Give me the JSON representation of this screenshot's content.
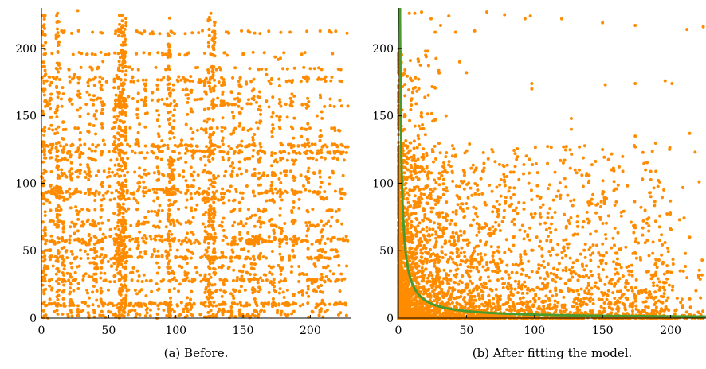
{
  "chart_data": [
    {
      "type": "scatter",
      "caption": "(a) Before.",
      "xlim": [
        0,
        230
      ],
      "ylim": [
        0,
        230
      ],
      "xticks": [
        "0",
        "50",
        "100",
        "150",
        "200"
      ],
      "yticks": [
        "0",
        "50",
        "100",
        "150",
        "200"
      ],
      "point_color": "#ff8c00",
      "grid": false,
      "series": [
        {
          "rows_y": [
            0,
            2,
            5,
            10,
            11,
            20,
            28,
            33,
            38,
            45,
            50,
            56,
            58,
            60,
            69,
            71,
            80,
            88,
            93,
            95,
            105,
            108,
            118,
            123,
            128,
            140,
            158,
            162,
            176,
            178,
            185,
            196,
            212
          ],
          "cols_x": [
            2,
            7,
            12,
            16,
            22,
            28,
            35,
            40,
            45,
            55,
            58,
            60,
            62,
            72,
            77,
            87,
            95,
            98,
            108,
            112,
            122,
            125,
            128,
            135,
            142,
            148,
            158,
            162,
            172,
            178,
            187,
            198,
            208
          ],
          "points": [
            [
              4,
              176
            ],
            [
              12,
              226
            ],
            [
              15,
              213
            ],
            [
              27,
              228
            ],
            [
              38,
              212
            ],
            [
              55,
              211
            ],
            [
              62,
              205
            ],
            [
              72,
              212
            ],
            [
              81,
              211
            ],
            [
              88,
              211
            ],
            [
              94,
              211
            ],
            [
              99,
              211
            ],
            [
              107,
              211
            ],
            [
              126,
              226
            ],
            [
              129,
              211
            ],
            [
              185,
              212
            ],
            [
              158,
              162
            ],
            [
              160,
              160
            ],
            [
              175,
              150
            ],
            [
              200,
              185
            ],
            [
              205,
              150
            ],
            [
              224,
              128
            ],
            [
              228,
              127
            ],
            [
              216,
              75
            ],
            [
              215,
              35
            ],
            [
              222,
              20
            ],
            [
              218,
              10
            ],
            [
              212,
              70
            ],
            [
              188,
              102
            ],
            [
              195,
              98
            ],
            [
              210,
              88
            ],
            [
              160,
              145
            ],
            [
              166,
              123
            ],
            [
              200,
              124
            ],
            [
              205,
              122
            ],
            [
              213,
              123
            ],
            [
              222,
              12
            ],
            [
              226,
              11
            ],
            [
              194,
              20
            ],
            [
              203,
              40
            ],
            [
              206,
              23
            ]
          ]
        }
      ]
    },
    {
      "type": "scatter",
      "caption": "(b) After fitting the model.",
      "xlim": [
        0,
        226
      ],
      "ylim": [
        0,
        230
      ],
      "xticks": [
        "0",
        "50",
        "100",
        "150",
        "200"
      ],
      "yticks": [
        "0",
        "50",
        "100",
        "150",
        "200"
      ],
      "point_color": "#ff8c00",
      "fit_color": "#4a9b2e",
      "grid": false,
      "fit_curve": {
        "form": "y = a / x",
        "a": 260
      },
      "series": [
        {
          "points": [
            [
              1,
              228
            ],
            [
              8,
              226
            ],
            [
              12,
              226
            ],
            [
              17,
              227
            ],
            [
              24,
              222
            ],
            [
              31,
              217
            ],
            [
              37,
              224
            ],
            [
              42,
              212
            ],
            [
              56,
              213
            ],
            [
              65,
              227
            ],
            [
              78,
              225
            ],
            [
              93,
              222
            ],
            [
              97,
              224
            ],
            [
              120,
              222
            ],
            [
              150,
              219
            ],
            [
              174,
              217
            ],
            [
              212,
              214
            ],
            [
              224,
              216
            ],
            [
              152,
              173
            ],
            [
              196,
              176
            ],
            [
              201,
              174
            ],
            [
              174,
              174
            ],
            [
              98,
              174
            ],
            [
              98,
              170
            ],
            [
              127,
              148
            ],
            [
              127,
              140
            ],
            [
              214,
              137
            ],
            [
              174,
              135
            ],
            [
              218,
              123
            ],
            [
              150,
              125
            ],
            [
              174,
              127
            ],
            [
              78,
              101
            ],
            [
              66,
              118
            ],
            [
              191,
              102
            ],
            [
              195,
              95
            ],
            [
              185,
              93
            ],
            [
              221,
              101
            ],
            [
              214,
              60
            ],
            [
              174,
              67
            ],
            [
              124,
              55
            ],
            [
              150,
              55
            ],
            [
              160,
              48
            ],
            [
              186,
              32
            ],
            [
              207,
              35
            ],
            [
              212,
              30
            ],
            [
              223,
              32
            ],
            [
              222,
              15
            ],
            [
              140,
              30
            ],
            [
              110,
              40
            ],
            [
              45,
              190
            ],
            [
              50,
              182
            ],
            [
              35,
              150
            ],
            [
              62,
              109
            ],
            [
              27,
              212
            ],
            [
              20,
              195
            ],
            [
              15,
              170
            ],
            [
              9,
              130
            ],
            [
              7,
              110
            ],
            [
              5,
              150
            ],
            [
              3,
              180
            ]
          ]
        }
      ]
    }
  ]
}
